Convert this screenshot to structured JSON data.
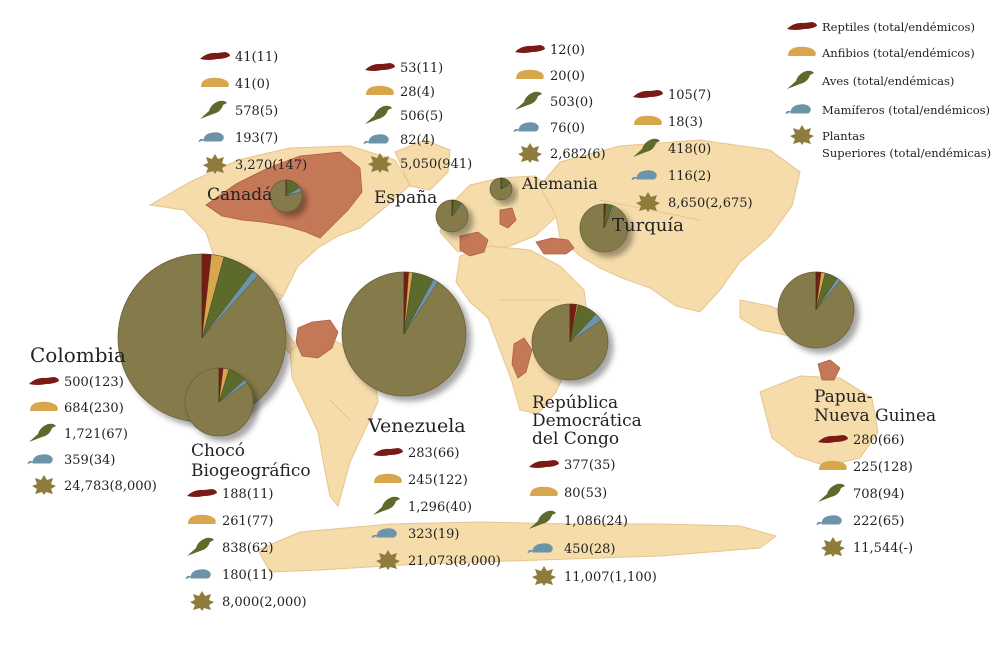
{
  "legend": [
    {
      "key": "reptiles",
      "label": "Reptiles (total/endémicos)",
      "icon": "lizard-icon",
      "color": "#7a1a14"
    },
    {
      "key": "amphibians",
      "label": "Anfibios (total/endémicos)",
      "icon": "frog-icon",
      "color": "#d8a64c"
    },
    {
      "key": "birds",
      "label": "Aves (total/endémicas)",
      "icon": "bird-icon",
      "color": "#5c6a2c"
    },
    {
      "key": "mammals",
      "label": "Mamíferos (total/endémicos)",
      "icon": "rodent-icon",
      "color": "#6c94a8"
    },
    {
      "key": "plants",
      "label_lines": [
        "Plantas",
        "Superiores (total/endémicas)"
      ],
      "icon": "plant-icon",
      "color": "#8d7c3c"
    }
  ],
  "colors": {
    "land": "#f5dcaa",
    "highlight": "#c57858",
    "pie_fill": "#857a4a",
    "border": "#e8c48e"
  },
  "regions": [
    {
      "id": "canada",
      "name_lines": [
        "Canadá"
      ],
      "values": [
        "41(11)",
        "41(0)",
        "578(5)",
        "193(7)",
        "3,270(147)"
      ],
      "species": [
        41,
        41,
        578,
        193,
        3270
      ]
    },
    {
      "id": "espana",
      "name_lines": [
        "España"
      ],
      "values": [
        "53(11)",
        "28(4)",
        "506(5)",
        "82(4)",
        "5,050(941)"
      ],
      "species": [
        53,
        28,
        506,
        82,
        5050
      ]
    },
    {
      "id": "alemania",
      "name_lines": [
        "Alemania"
      ],
      "values": [
        "12(0)",
        "20(0)",
        "503(0)",
        "76(0)",
        "2,682(6)"
      ],
      "species": [
        12,
        20,
        503,
        76,
        2682
      ]
    },
    {
      "id": "turquia",
      "name_lines": [
        "Turquía"
      ],
      "values": [
        "105(7)",
        "18(3)",
        "418(0)",
        "116(2)",
        "8,650(2,675)"
      ],
      "species": [
        105,
        18,
        418,
        116,
        8650
      ]
    },
    {
      "id": "colombia",
      "name_lines": [
        "Colombia"
      ],
      "values": [
        "500(123)",
        "684(230)",
        "1,721(67)",
        "359(34)",
        "24,783(8,000)"
      ],
      "species": [
        500,
        684,
        1721,
        359,
        24783
      ]
    },
    {
      "id": "choco",
      "name_lines": [
        "Chocó",
        "Biogeográfico"
      ],
      "values": [
        "188(11)",
        "261(77)",
        "838(62)",
        "180(11)",
        "8,000(2,000)"
      ],
      "species": [
        188,
        261,
        838,
        180,
        8000
      ]
    },
    {
      "id": "venezuela",
      "name_lines": [
        "Venezuela"
      ],
      "values": [
        "283(66)",
        "245(122)",
        "1,296(40)",
        "323(19)",
        "21,073(8,000)"
      ],
      "species": [
        283,
        245,
        1296,
        323,
        21073
      ]
    },
    {
      "id": "congo",
      "name_lines": [
        "República",
        "Democrática",
        "del Congo"
      ],
      "values": [
        "377(35)",
        "80(53)",
        "1,086(24)",
        "450(28)",
        "11,007(1,100)"
      ],
      "species": [
        377,
        80,
        1086,
        450,
        11007
      ]
    },
    {
      "id": "papua",
      "name_lines": [
        "Papua-",
        "Nueva Guinea"
      ],
      "values": [
        "280(66)",
        "225(128)",
        "708(94)",
        "222(65)",
        "11,544(-)"
      ],
      "species": [
        280,
        225,
        708,
        222,
        11544
      ]
    }
  ]
}
